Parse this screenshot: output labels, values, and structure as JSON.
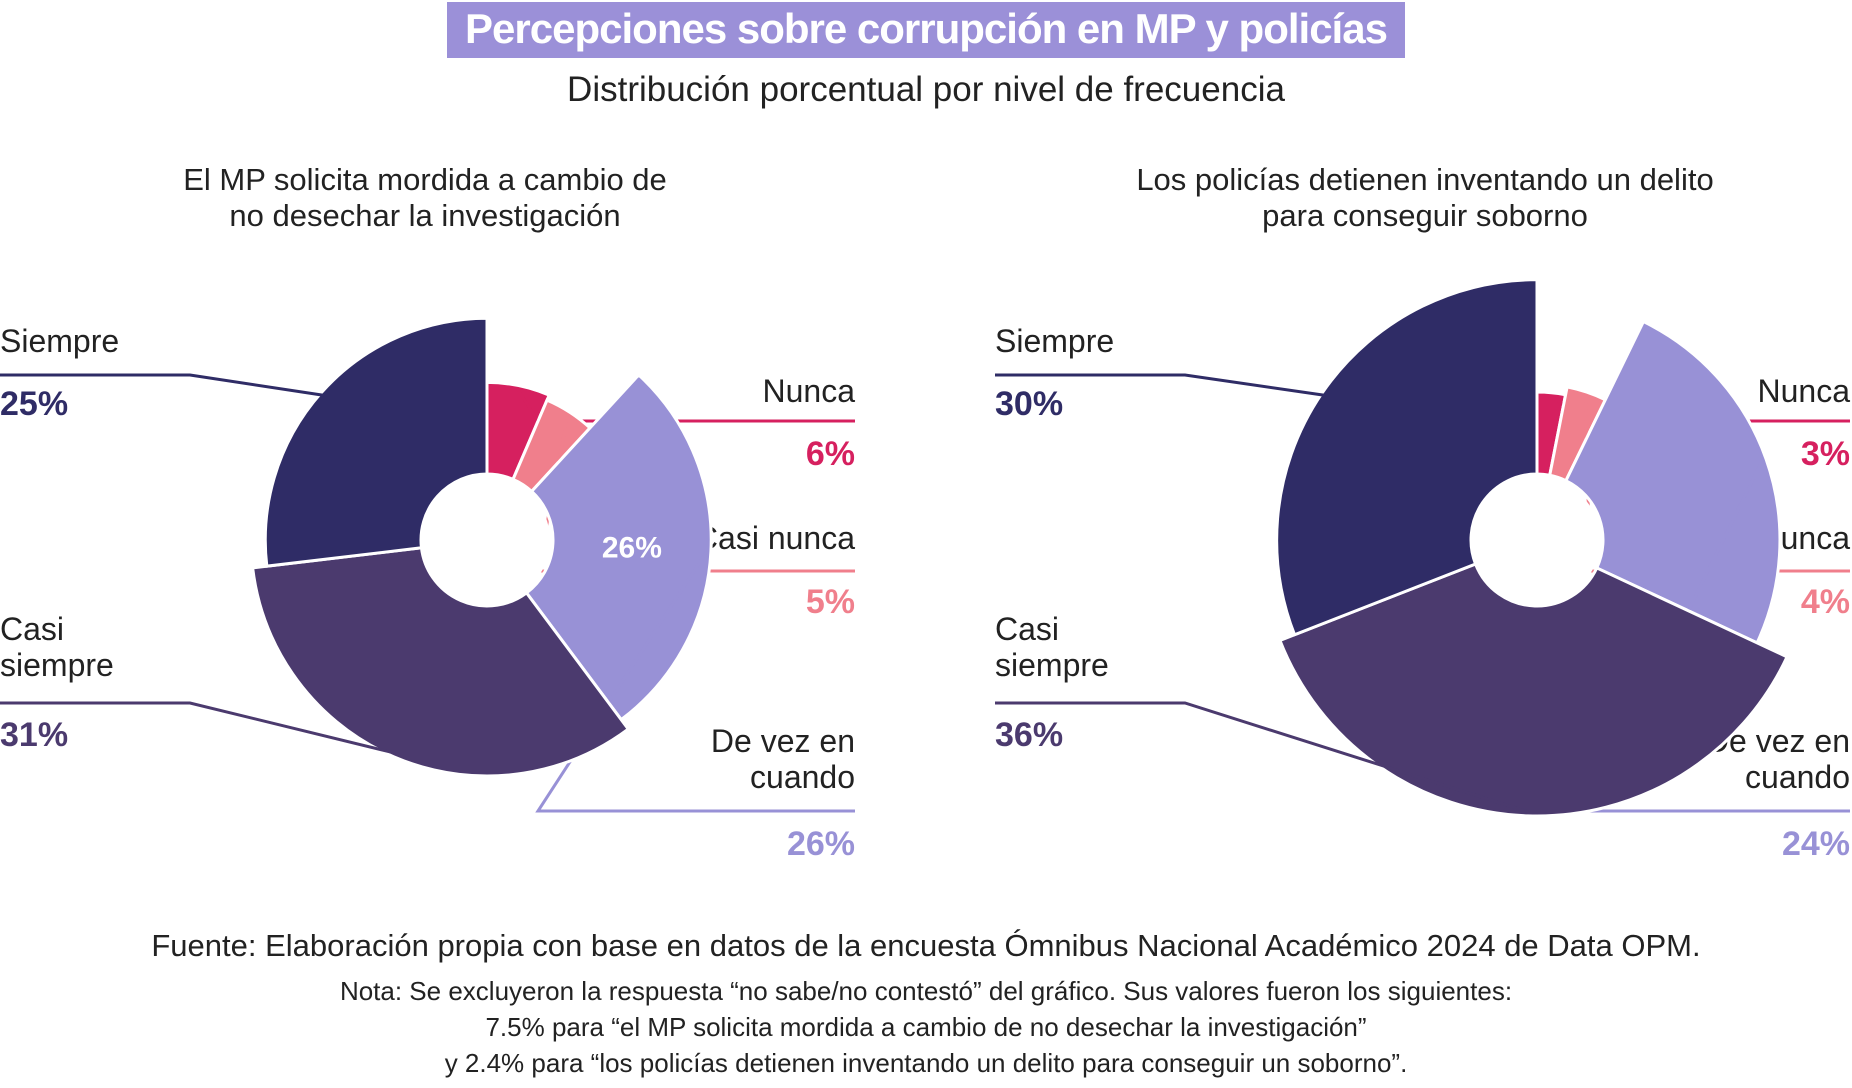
{
  "title": "Percepciones sobre corrupción en MP y policías",
  "subtitle": "Distribución porcentual por nivel de frecuencia",
  "colors": {
    "Nunca": "#d6205f",
    "Casi nunca": "#f07f8c",
    "De vez en cuando": "#9891d6",
    "Casi siempre": "#4b3a6e",
    "Siempre": "#2f2c66"
  },
  "chart_data": [
    {
      "type": "pie",
      "title": "El MP solicita mordida a cambio de no desechar la investigación",
      "title_lines": [
        "El MP solicita mordida a cambio de",
        "no desechar la investigación"
      ],
      "categories": [
        "Nunca",
        "Casi nunca",
        "De vez en cuando",
        "Casi siempre",
        "Siempre"
      ],
      "values": [
        6,
        5,
        26,
        31,
        25
      ],
      "labels": [
        {
          "category": "Nunca",
          "lines": [
            "Nunca"
          ],
          "pct": "6%"
        },
        {
          "category": "Casi nunca",
          "lines": [
            "Casi nunca"
          ],
          "pct": "5%"
        },
        {
          "category": "De vez en cuando",
          "lines": [
            "De vez en",
            "cuando"
          ],
          "pct": "26%"
        },
        {
          "category": "Casi siempre",
          "lines": [
            "Casi",
            "siempre"
          ],
          "pct": "31%"
        },
        {
          "category": "Siempre",
          "lines": [
            "Siempre"
          ],
          "pct": "25%"
        }
      ],
      "inner_label": "26%"
    },
    {
      "type": "pie",
      "title": "Los policías detienen inventando un delito para conseguir soborno",
      "title_lines": [
        "Los policías detienen inventando un delito",
        "para conseguir soborno"
      ],
      "categories": [
        "Nunca",
        "Casi nunca",
        "De vez en cuando",
        "Casi siempre",
        "Siempre"
      ],
      "values": [
        3,
        4,
        24,
        36,
        30
      ],
      "labels": [
        {
          "category": "Nunca",
          "lines": [
            "Nunca"
          ],
          "pct": "3%"
        },
        {
          "category": "Casi nunca",
          "lines": [
            "Casi nunca"
          ],
          "pct": "4%"
        },
        {
          "category": "De vez en cuando",
          "lines": [
            "De vez en",
            "cuando"
          ],
          "pct": "24%"
        },
        {
          "category": "Casi siempre",
          "lines": [
            "Casi",
            "siempre"
          ],
          "pct": "36%"
        },
        {
          "category": "Siempre",
          "lines": [
            "Siempre"
          ],
          "pct": "30%"
        }
      ]
    }
  ],
  "footer": {
    "source": "Fuente: Elaboración propia con base en datos de la encuesta Ómnibus Nacional Académico 2024 de Data OPM.",
    "note_lines": [
      "Nota: Se excluyeron la respuesta “no sabe/no contestó” del gráfico. Sus valores fueron los siguientes:",
      "7.5% para “el MP solicita mordida a cambio de no desechar la investigación”",
      "y 2.4% para “los policías detienen inventando un delito para conseguir un soborno”."
    ]
  }
}
